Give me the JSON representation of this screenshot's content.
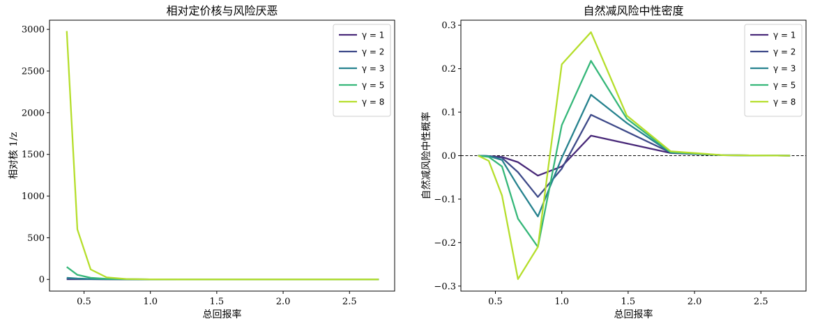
{
  "chart_data": [
    {
      "type": "line",
      "title": "相对定价核与风险厌恶",
      "xlabel": "总回报率",
      "ylabel": "相对核 1/z",
      "xlim": [
        0.24,
        2.84
      ],
      "ylim": [
        -140,
        3110
      ],
      "xticks": [
        0.5,
        1.0,
        1.5,
        2.0,
        2.5
      ],
      "xtick_labels": [
        "0.5",
        "1.0",
        "1.5",
        "2.0",
        "2.5"
      ],
      "yticks": [
        0,
        500,
        1000,
        1500,
        2000,
        2500,
        3000
      ],
      "ytick_labels": [
        "0",
        "500",
        "1000",
        "1500",
        "2000",
        "2500",
        "3000"
      ],
      "legend": "top-right",
      "grid": false,
      "x": [
        0.37,
        0.45,
        0.55,
        0.67,
        0.82,
        1.0,
        1.22,
        1.49,
        1.82,
        2.22,
        2.72
      ],
      "series": [
        {
          "name": "γ = 1",
          "color": "#482878",
          "values": [
            2.7,
            2.2,
            1.8,
            1.5,
            1.2,
            1.0,
            0.8,
            0.7,
            0.55,
            0.45,
            0.37
          ]
        },
        {
          "name": "γ = 2",
          "color": "#3e4a89",
          "values": [
            7.4,
            4.9,
            3.3,
            2.2,
            1.5,
            1.0,
            0.7,
            0.45,
            0.3,
            0.2,
            0.14
          ]
        },
        {
          "name": "γ = 3",
          "color": "#26828e",
          "values": [
            20,
            11,
            5,
            3.3,
            1.8,
            1.0,
            0.55,
            0.3,
            0.17,
            0.09,
            0.05
          ]
        },
        {
          "name": "γ = 5",
          "color": "#35b779",
          "values": [
            150,
            55,
            20,
            7,
            2.7,
            1.0,
            0.37,
            0.14,
            0.05,
            0.02,
            0.007
          ]
        },
        {
          "name": "γ = 8",
          "color": "#b5de2b",
          "values": [
            2980,
            600,
            120,
            25,
            5,
            1.0,
            0.2,
            0.04,
            0.008,
            0.002,
            0.0003
          ]
        }
      ]
    },
    {
      "type": "line",
      "title": "自然减风险中性密度",
      "xlabel": "总回报率",
      "ylabel": "自然减风险中性概率",
      "xlim": [
        0.24,
        2.84
      ],
      "ylim": [
        -0.3115,
        0.3115
      ],
      "xticks": [
        0.5,
        1.0,
        1.5,
        2.0,
        2.5
      ],
      "xtick_labels": [
        "0.5",
        "1.0",
        "1.5",
        "2.0",
        "2.5"
      ],
      "yticks": [
        -0.3,
        -0.2,
        -0.1,
        0.0,
        0.1,
        0.2,
        0.3
      ],
      "ytick_labels": [
        "−0.3",
        "−0.2",
        "−0.1",
        "0.0",
        "0.1",
        "0.2",
        "0.3"
      ],
      "reference_line": 0,
      "legend": "top-right",
      "grid": false,
      "x": [
        0.37,
        0.45,
        0.55,
        0.67,
        0.82,
        1.0,
        1.22,
        1.49,
        1.82,
        2.22,
        2.72
      ],
      "series": [
        {
          "name": "γ = 1",
          "color": "#482878",
          "values": [
            0.0,
            -0.001,
            -0.003,
            -0.015,
            -0.046,
            -0.025,
            0.046,
            0.028,
            0.006,
            0.001,
            0.0
          ]
        },
        {
          "name": "γ = 2",
          "color": "#3e4a89",
          "values": [
            0.0,
            -0.001,
            -0.005,
            -0.038,
            -0.095,
            -0.03,
            0.094,
            0.055,
            0.007,
            0.001,
            0.0
          ]
        },
        {
          "name": "γ = 3",
          "color": "#26828e",
          "values": [
            0.0,
            -0.001,
            -0.01,
            -0.07,
            -0.14,
            -0.005,
            0.14,
            0.075,
            0.007,
            0.001,
            0.0
          ]
        },
        {
          "name": "γ = 5",
          "color": "#35b779",
          "values": [
            0.0,
            -0.003,
            -0.025,
            -0.145,
            -0.21,
            0.07,
            0.218,
            0.085,
            0.008,
            0.001,
            0.0
          ]
        },
        {
          "name": "γ = 8",
          "color": "#b5de2b",
          "values": [
            0.0,
            -0.012,
            -0.092,
            -0.284,
            -0.21,
            0.21,
            0.284,
            0.092,
            0.01,
            0.001,
            0.0
          ]
        }
      ]
    }
  ]
}
